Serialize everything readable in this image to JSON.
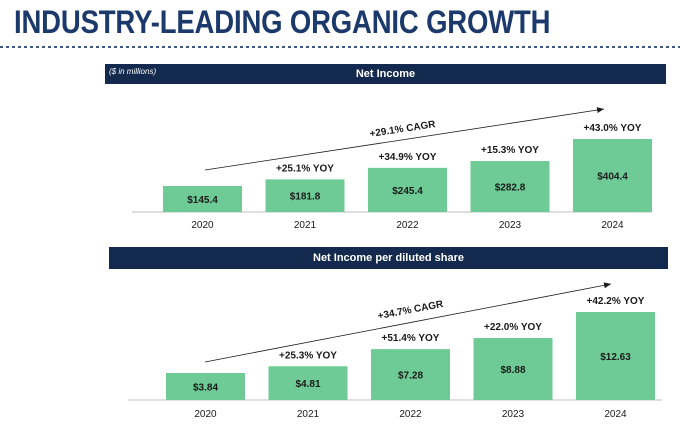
{
  "page": {
    "title": "INDUSTRY-LEADING ORGANIC GROWTH"
  },
  "colors": {
    "title": "#1b3a6b",
    "band": "#132a4e",
    "bar": "#6ecb96",
    "axis": "#bfbfbf",
    "text": "#1a1a1a"
  },
  "chart_data": [
    {
      "type": "bar",
      "title": "Net Income",
      "units_note": "($ in millions)",
      "categories": [
        "2020",
        "2021",
        "2022",
        "2023",
        "2024"
      ],
      "values": [
        145.4,
        181.8,
        245.4,
        282.8,
        404.4
      ],
      "value_labels": [
        "$145.4",
        "$181.8",
        "$245.4",
        "$282.8",
        "$404.4"
      ],
      "yoy_labels": [
        "",
        "+25.1% YOY",
        "+34.9% YOY",
        "+15.3% YOY",
        "+43.0% YOY"
      ],
      "cagr_label": "+29.1% CAGR",
      "ylim": [
        0,
        404.4
      ],
      "grid": false,
      "bar_color": "#6ecb96"
    },
    {
      "type": "bar",
      "title": "Net Income per diluted share",
      "categories": [
        "2020",
        "2021",
        "2022",
        "2023",
        "2024"
      ],
      "values": [
        3.84,
        4.81,
        7.28,
        8.88,
        12.63
      ],
      "value_labels": [
        "$3.84",
        "$4.81",
        "$7.28",
        "$8.88",
        "$12.63"
      ],
      "yoy_labels": [
        "",
        "+25.3% YOY",
        "+51.4% YOY",
        "+22.0% YOY",
        "+42.2% YOY"
      ],
      "cagr_label": "+34.7% CAGR",
      "ylim": [
        0,
        12.63
      ],
      "grid": false,
      "bar_color": "#6ecb96"
    }
  ]
}
